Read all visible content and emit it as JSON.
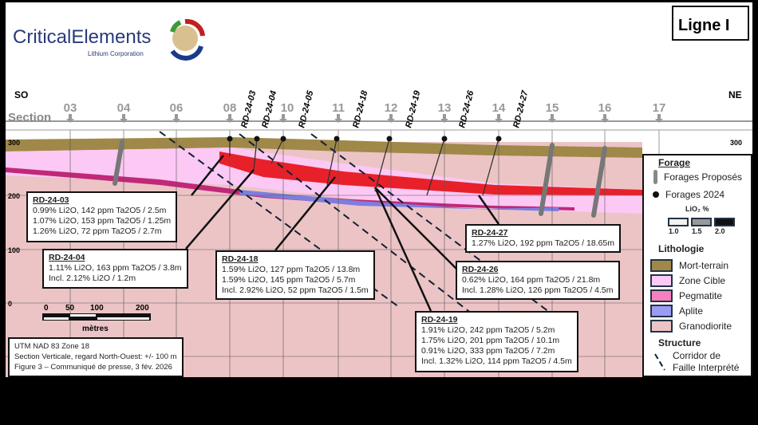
{
  "logo": {
    "name": "CriticalElements",
    "subtitle": "Lithium Corporation"
  },
  "title": "Ligne I",
  "directions": {
    "left": "SO",
    "right": "NE"
  },
  "section_label": "Section",
  "sections": [
    "03",
    "04",
    "06",
    "08",
    "10",
    "11",
    "12",
    "13",
    "14",
    "15",
    "16",
    "17"
  ],
  "drillholes": [
    "RD-24-03",
    "RD-24-04",
    "RD-24-05",
    "RD-24-18",
    "RD-24-19",
    "RD-24-26",
    "RD-24-27"
  ],
  "elevations": [
    "300",
    "200",
    "100",
    "0"
  ],
  "elevation_right": "300",
  "callouts": [
    {
      "id": "RD-24-03",
      "lines": [
        "0.99% Li2O, 142 ppm Ta2O5 / 2.5m",
        "1.07% Li2O, 153 ppm Ta2O5 / 1.25m",
        "1.26% Li2O, 72 ppm Ta2O5 / 2.7m"
      ]
    },
    {
      "id": "RD-24-04",
      "lines": [
        "1.11% Li2O, 163 ppm Ta2O5 / 3.8m",
        "Incl. 2.12% Li2O / 1.2m"
      ]
    },
    {
      "id": "RD-24-18",
      "lines": [
        "1.59% Li2O, 127 ppm Ta2O5 / 13.8m",
        "1.59% Li2O, 145 ppm Ta2O5 / 5.7m",
        "Incl. 2.92% Li2O, 52 ppm Ta2O5 / 1.5m"
      ]
    },
    {
      "id": "RD-24-27",
      "lines": [
        "1.27% Li2O, 192 ppm Ta2O5 / 18.65m"
      ]
    },
    {
      "id": "RD-24-26",
      "lines": [
        "0.62% Li2O, 164 ppm Ta2O5 / 21.8m",
        "Incl. 1.28% Li2O, 126 ppm Ta2O5 / 4.5m"
      ]
    },
    {
      "id": "RD-24-19",
      "lines": [
        "1.91% Li2O, 242 ppm Ta2O5 / 5.2m",
        "1.75% Li2O, 201 ppm Ta2O5 / 10.1m",
        "0.91% Li2O, 333 ppm Ta2O5 / 7.2m",
        "Incl. 1.32% Li2O, 114 ppm Ta2O5 / 4.5m"
      ]
    }
  ],
  "scale": {
    "ticks": [
      "0",
      "50",
      "100",
      "200"
    ],
    "unit": "mètres"
  },
  "info": [
    "UTM NAD 83 Zone 18",
    "Section Verticale, regard North-Ouest: +/- 100 m",
    "Figure 3 – Communiqué de presse, 3 fév. 2026"
  ],
  "legend": {
    "forage_title": "Forage",
    "proposed": "Forages Proposés",
    "drilled": "Forages 2024",
    "grade_title": "LiO₂ %",
    "grades": [
      "1.0",
      "1.5",
      "2.0"
    ],
    "grade_colors": [
      "#f2f2f2",
      "#999999",
      "#111111"
    ],
    "litho_title": "Lithologie",
    "litho": [
      {
        "label": "Mort-terrain",
        "color": "#a08848"
      },
      {
        "label": "Zone Cible",
        "color": "#fcc8f4"
      },
      {
        "label": "Pegmatite",
        "color": "#f57fbf"
      },
      {
        "label": "Aplite",
        "color": "#9a9cf4"
      },
      {
        "label": "Granodiorite",
        "color": "#ecc4c6"
      }
    ],
    "structure_title": "Structure",
    "fault": [
      "Corridor de",
      "Faille Interprété"
    ]
  }
}
